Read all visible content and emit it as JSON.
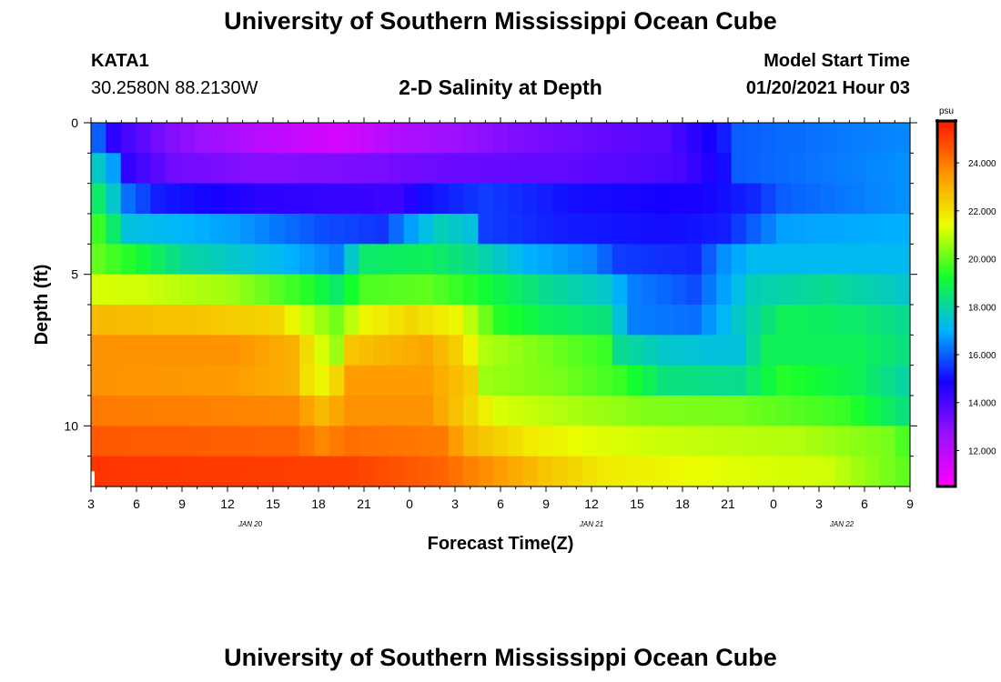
{
  "header": {
    "title": "University of Southern Mississippi Ocean Cube",
    "station_id": "KATA1",
    "station_coords": "30.2580N 88.2130W",
    "subtitle": "2-D Salinity at Depth",
    "model_start_label": "Model Start Time",
    "model_start_value": "01/20/2021 Hour 03"
  },
  "footer": {
    "title": "University of Southern Mississippi Ocean Cube"
  },
  "chart_data": {
    "type": "heatmap",
    "title": "2-D Salinity at Depth",
    "xlabel": "Forecast Time(Z)",
    "ylabel": "Depth (ft)",
    "colorbar_unit": "psu",
    "x_tick_labels": [
      "3",
      "6",
      "9",
      "12",
      "15",
      "18",
      "21",
      "0",
      "3",
      "6",
      "9",
      "12",
      "15",
      "18",
      "21",
      "0",
      "3",
      "6",
      "9"
    ],
    "x_range_hours": [
      3,
      57
    ],
    "date_labels": [
      {
        "text": "JAN 20",
        "hour": 13.5
      },
      {
        "text": "JAN 21",
        "hour": 36
      },
      {
        "text": "JAN 22",
        "hour": 52.5
      }
    ],
    "y_ticks": [
      0,
      5,
      10
    ],
    "y_minor_ticks": [
      1,
      2,
      3,
      4,
      6,
      7,
      8,
      9,
      11
    ],
    "ylim": [
      0,
      12
    ],
    "y_inverted": true,
    "colorbar": {
      "min": 10.5,
      "max": 25.75,
      "ticks": [
        12,
        14,
        16,
        18,
        20,
        22,
        24
      ],
      "tick_labels": [
        "12.000",
        "14.000",
        "16.000",
        "18.000",
        "20.000",
        "22.000",
        "24.000"
      ],
      "colors": [
        "#ff00ff",
        "#9a10ff",
        "#1500ff",
        "#00b4ff",
        "#12fe2e",
        "#ecff00",
        "#ff9400",
        "#ff1500"
      ]
    },
    "depth_rows": [
      0.5,
      1.5,
      2.5,
      3.5,
      4.5,
      5.5,
      6.5,
      7.5,
      8.5,
      9.5,
      10.5,
      11.5
    ],
    "row_salinity_keys": [
      [
        [
          3,
          16.0
        ],
        [
          4,
          14.5
        ],
        [
          5,
          14.0
        ],
        [
          8,
          13.0
        ],
        [
          14,
          12.0
        ],
        [
          19,
          11.4
        ],
        [
          23,
          12.2
        ],
        [
          33,
          13.3
        ],
        [
          41,
          13.8
        ],
        [
          45,
          15.2
        ],
        [
          46,
          16.0
        ],
        [
          57,
          16.5
        ]
      ],
      [
        [
          3,
          17.6
        ],
        [
          4,
          16.8
        ],
        [
          5,
          14.4
        ],
        [
          8,
          13.4
        ],
        [
          14,
          13.0
        ],
        [
          21,
          13.2
        ],
        [
          27,
          13.5
        ],
        [
          34,
          13.6
        ],
        [
          42,
          14.0
        ],
        [
          45,
          15.0
        ],
        [
          46,
          16.0
        ],
        [
          50,
          16.2
        ],
        [
          57,
          16.6
        ]
      ],
      [
        [
          3,
          18.6
        ],
        [
          4,
          17.6
        ],
        [
          5,
          16.2
        ],
        [
          7,
          15.2
        ],
        [
          14,
          14.5
        ],
        [
          23,
          14.2
        ],
        [
          25,
          15.0
        ],
        [
          29,
          15.6
        ],
        [
          35,
          15.0
        ],
        [
          43,
          14.8
        ],
        [
          47,
          15.3
        ],
        [
          49,
          16.0
        ],
        [
          57,
          16.6
        ]
      ],
      [
        [
          3,
          19.6
        ],
        [
          4,
          18.6
        ],
        [
          5,
          17.4
        ],
        [
          6,
          17.3
        ],
        [
          12,
          16.8
        ],
        [
          18,
          15.8
        ],
        [
          22,
          15.5
        ],
        [
          24,
          16.8
        ],
        [
          26,
          17.8
        ],
        [
          28,
          17.4
        ],
        [
          29,
          15.6
        ],
        [
          34,
          15.2
        ],
        [
          41,
          15.0
        ],
        [
          45,
          15.2
        ],
        [
          49,
          16.8
        ],
        [
          57,
          17.0
        ]
      ],
      [
        [
          3,
          20.0
        ],
        [
          5,
          19.4
        ],
        [
          9,
          18.0
        ],
        [
          15,
          17.2
        ],
        [
          19,
          16.4
        ],
        [
          20,
          17.6
        ],
        [
          21,
          18.6
        ],
        [
          25,
          18.8
        ],
        [
          28,
          18.2
        ],
        [
          32,
          17.0
        ],
        [
          36,
          16.5
        ],
        [
          38,
          15.6
        ],
        [
          43,
          15.3
        ],
        [
          45,
          16.6
        ],
        [
          47,
          17.2
        ],
        [
          57,
          17.2
        ]
      ],
      [
        [
          3,
          21.2
        ],
        [
          6,
          21.1
        ],
        [
          12,
          20.6
        ],
        [
          17,
          19.4
        ],
        [
          19,
          18.6
        ],
        [
          21,
          19.8
        ],
        [
          25,
          20.0
        ],
        [
          28,
          19.4
        ],
        [
          33,
          18.2
        ],
        [
          37,
          17.6
        ],
        [
          39,
          16.4
        ],
        [
          43,
          15.8
        ],
        [
          47,
          17.8
        ],
        [
          52,
          18.2
        ],
        [
          57,
          17.6
        ]
      ],
      [
        [
          3,
          22.8
        ],
        [
          10,
          22.6
        ],
        [
          15,
          22.2
        ],
        [
          17,
          21.0
        ],
        [
          19,
          20.2
        ],
        [
          21,
          21.6
        ],
        [
          24,
          22.2
        ],
        [
          27,
          21.6
        ],
        [
          30,
          19.4
        ],
        [
          33,
          18.8
        ],
        [
          37,
          18.4
        ],
        [
          39,
          16.4
        ],
        [
          43,
          16.2
        ],
        [
          46,
          17.6
        ],
        [
          49,
          18.8
        ],
        [
          54,
          18.6
        ],
        [
          57,
          18.2
        ]
      ],
      [
        [
          3,
          23.6
        ],
        [
          12,
          23.6
        ],
        [
          16,
          23.0
        ],
        [
          18,
          21.2
        ],
        [
          19,
          20.6
        ],
        [
          20,
          22.6
        ],
        [
          25,
          23.2
        ],
        [
          27,
          22.4
        ],
        [
          29,
          20.8
        ],
        [
          33,
          20.2
        ],
        [
          37,
          19.6
        ],
        [
          38,
          18.2
        ],
        [
          41,
          17.6
        ],
        [
          44,
          17.4
        ],
        [
          46,
          17.4
        ],
        [
          48,
          18.8
        ],
        [
          54,
          18.8
        ],
        [
          57,
          18.4
        ]
      ],
      [
        [
          3,
          23.6
        ],
        [
          12,
          23.4
        ],
        [
          16,
          23.0
        ],
        [
          17,
          22.0
        ],
        [
          18,
          21.6
        ],
        [
          19,
          22.2
        ],
        [
          20,
          23.4
        ],
        [
          25,
          23.4
        ],
        [
          28,
          22.4
        ],
        [
          29,
          20.6
        ],
        [
          34,
          20.2
        ],
        [
          38,
          19.6
        ],
        [
          41,
          18.4
        ],
        [
          46,
          18.2
        ],
        [
          49,
          19.4
        ],
        [
          54,
          18.8
        ],
        [
          57,
          18.0
        ]
      ],
      [
        [
          3,
          24.0
        ],
        [
          16,
          23.8
        ],
        [
          18,
          22.8
        ],
        [
          20,
          23.6
        ],
        [
          25,
          23.6
        ],
        [
          28,
          22.2
        ],
        [
          30,
          21.2
        ],
        [
          34,
          20.8
        ],
        [
          40,
          20.3
        ],
        [
          46,
          20.2
        ],
        [
          53,
          19.6
        ],
        [
          57,
          18.4
        ]
      ],
      [
        [
          3,
          24.6
        ],
        [
          16,
          24.4
        ],
        [
          18,
          23.8
        ],
        [
          20,
          24.2
        ],
        [
          26,
          24.0
        ],
        [
          28,
          22.8
        ],
        [
          32,
          21.8
        ],
        [
          36,
          21.3
        ],
        [
          42,
          21.0
        ],
        [
          50,
          20.8
        ],
        [
          56,
          20.2
        ],
        [
          57,
          19.8
        ]
      ],
      [
        [
          3,
          25.2
        ],
        [
          20,
          25.0
        ],
        [
          26,
          24.4
        ],
        [
          30,
          23.4
        ],
        [
          33,
          22.6
        ],
        [
          37,
          21.8
        ],
        [
          45,
          21.3
        ],
        [
          52,
          21.1
        ],
        [
          55,
          20.4
        ],
        [
          57,
          20.0
        ]
      ]
    ]
  }
}
